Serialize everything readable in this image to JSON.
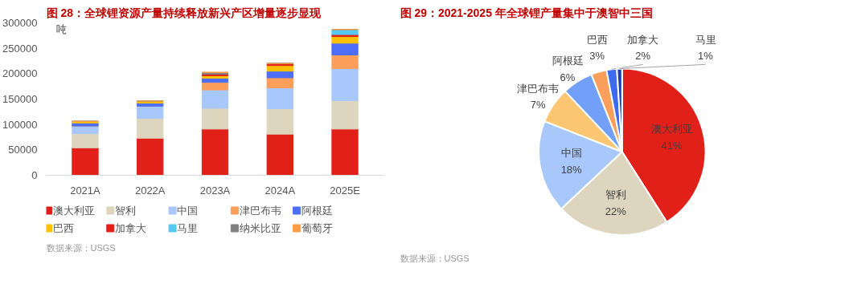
{
  "chart_data": [
    {
      "type": "bar",
      "title": "图 28：全球锂资源产量持续释放新兴产区增量逐步显现",
      "ylabel": "吨",
      "categories": [
        "2021A",
        "2022A",
        "2023A",
        "2024A",
        "2025E"
      ],
      "stacked": true,
      "ylim": [
        0,
        300000
      ],
      "yticks": [
        0,
        50000,
        100000,
        150000,
        200000,
        250000,
        300000
      ],
      "grid": false,
      "legend": "bottom",
      "series": [
        {
          "name": "澳大利亚",
          "color": "#e02019",
          "values": [
            54000,
            73000,
            91000,
            81000,
            91000
          ]
        },
        {
          "name": "智利",
          "color": "#ddd5bd",
          "values": [
            28000,
            39000,
            41000,
            50000,
            56000
          ]
        },
        {
          "name": "中国",
          "color": "#a8c8fb",
          "values": [
            15000,
            24000,
            36000,
            41000,
            63000
          ]
        },
        {
          "name": "津巴布韦",
          "color": "#fd9e5b",
          "values": [
            0,
            0,
            15000,
            20000,
            27000
          ]
        },
        {
          "name": "阿根廷",
          "color": "#4c6ef8",
          "values": [
            6000,
            6000,
            8000,
            13000,
            23000
          ]
        },
        {
          "name": "巴西",
          "color": "#fec000",
          "values": [
            3000,
            4000,
            5000,
            11000,
            13000
          ]
        },
        {
          "name": "加拿大",
          "color": "#e02019",
          "values": [
            0,
            0,
            3000,
            4000,
            4000
          ]
        },
        {
          "name": "马里",
          "color": "#57c8ef",
          "values": [
            0,
            0,
            0,
            0,
            10000
          ]
        },
        {
          "name": "纳米比亚",
          "color": "#808080",
          "values": [
            0,
            0,
            3000,
            null,
            null
          ]
        },
        {
          "name": "葡萄牙",
          "color": "#fd9d48",
          "values": [
            0,
            0,
            1000,
            0,
            0
          ]
        }
      ],
      "annotations": [
        "数据来源：USGS"
      ]
    },
    {
      "type": "pie",
      "title": "图 29：2021-2025 年全球锂产量集中于澳智中三国",
      "categories": [
        "澳大利亚",
        "智利",
        "中国",
        "津巴布韦",
        "阿根廷",
        "巴西",
        "加拿大",
        "马里"
      ],
      "values": [
        41,
        22,
        18,
        7,
        6,
        3,
        2,
        1
      ],
      "colors": [
        "#e02019",
        "#ddd5bd",
        "#a8c8fb",
        "#fcc572",
        "#72a0f8",
        "#fc9f5a",
        "#3e6af0",
        "#1e3fb0"
      ],
      "value_labels": [
        "41%",
        "22%",
        "18%",
        "7%",
        "6%",
        "3%",
        "2%",
        "1%"
      ],
      "annotations": [
        "数据来源：USGS"
      ]
    }
  ]
}
